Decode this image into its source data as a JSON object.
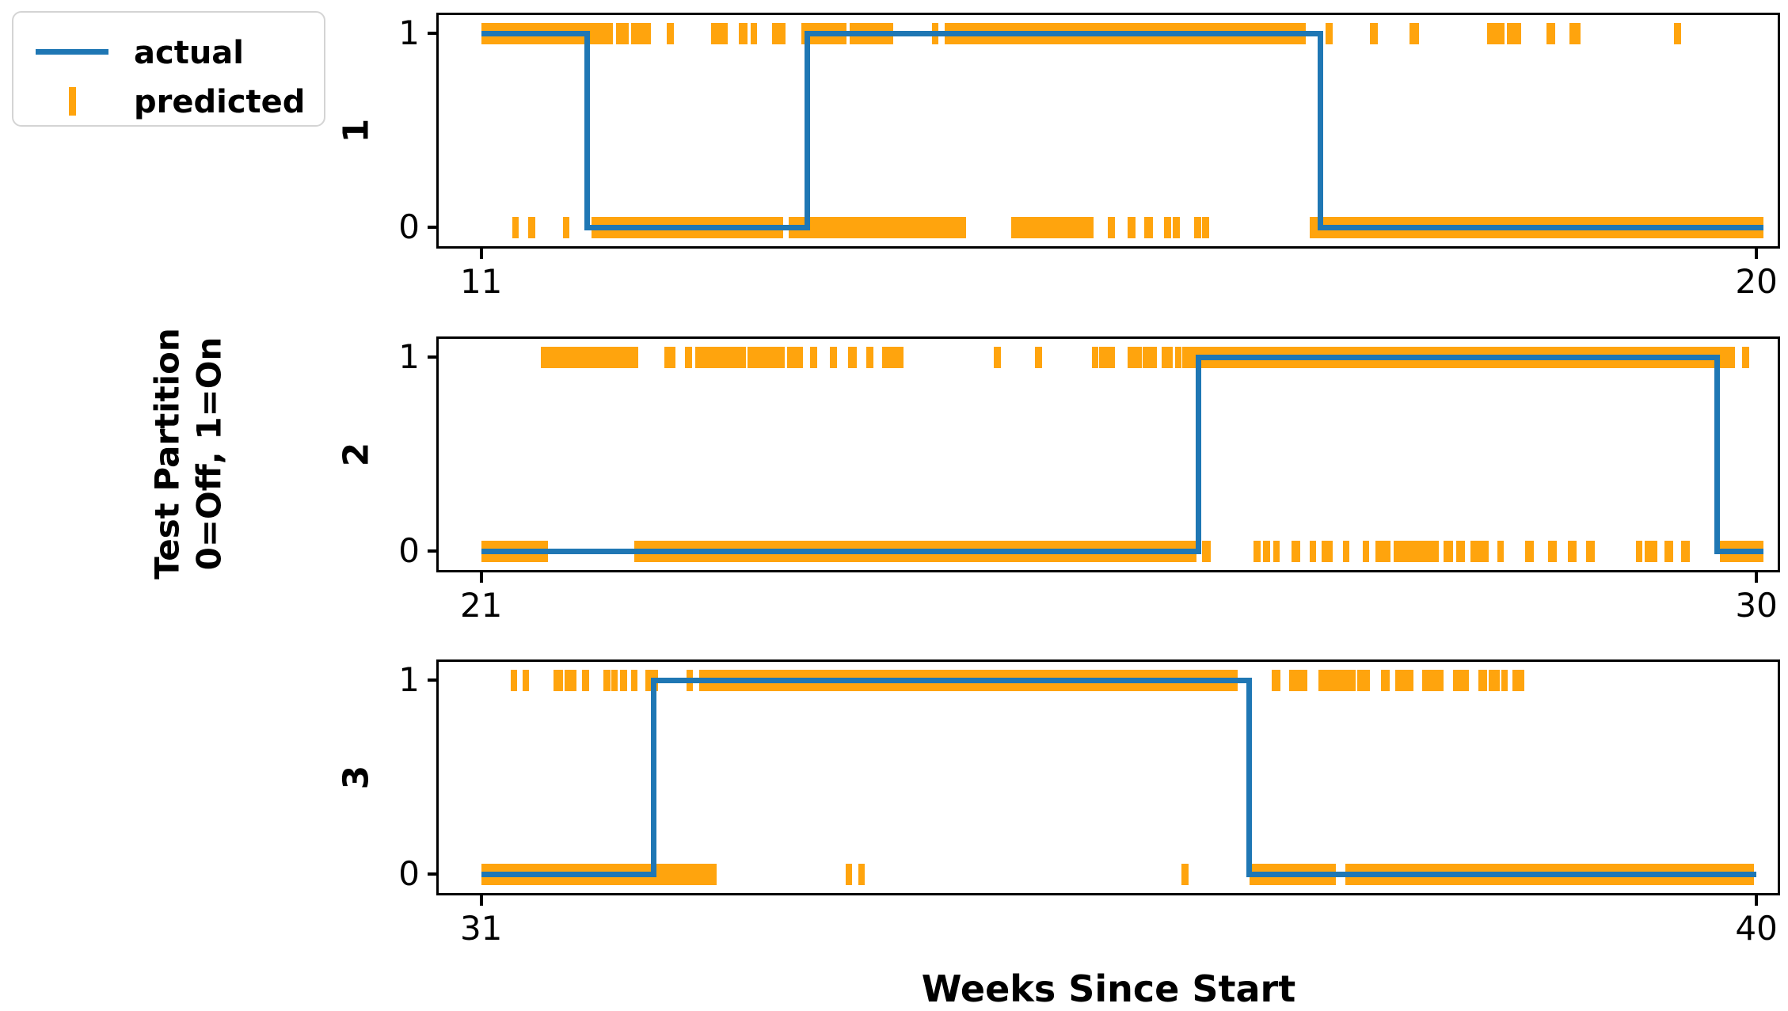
{
  "legend": {
    "items": [
      {
        "label": "actual",
        "marker": "line-sample"
      },
      {
        "label": "predicted",
        "marker": "tick-sample"
      }
    ]
  },
  "chart_data": {
    "type": "line",
    "subtype": "step-line-with-rug-ticks",
    "title": "",
    "xlabel": "Weeks Since Start",
    "ylabel_line1": "Test Partition",
    "ylabel_line2": "0=Off, 1=On",
    "actual_color": "#1f77b4",
    "predicted_color": "#ffa40d",
    "spine_color": "#000000",
    "ylim": [
      0,
      1
    ],
    "ytick_labels": [
      "1",
      "0"
    ],
    "legend_position": "upper left, outside axes",
    "grid": false,
    "panels": [
      {
        "label": "1",
        "xlim": [
          10.7,
          20.15
        ],
        "xtick_values": [
          11,
          20
        ],
        "xtick_labels": [
          "11",
          "20"
        ],
        "actual": {
          "levels": [
            [
              11.0,
              1
            ],
            [
              11.75,
              0
            ],
            [
              13.3,
              1
            ],
            [
              16.92,
              0
            ]
          ],
          "end": 20.05
        },
        "predicted_on": [
          [
            11.0,
            11.93
          ],
          [
            11.95,
            12.04
          ],
          [
            12.06,
            12.2
          ],
          [
            12.31,
            12.36
          ],
          [
            12.62,
            12.74
          ],
          [
            12.82,
            12.88
          ],
          [
            12.9,
            12.93
          ],
          [
            13.05,
            13.15
          ],
          [
            13.26,
            13.58
          ],
          [
            13.6,
            13.91
          ],
          [
            14.18,
            14.22
          ],
          [
            14.27,
            16.82
          ],
          [
            16.96,
            17.01
          ],
          [
            17.27,
            17.33
          ],
          [
            17.55,
            17.62
          ],
          [
            18.1,
            18.22
          ],
          [
            18.24,
            18.34
          ],
          [
            18.52,
            18.58
          ],
          [
            18.68,
            18.76
          ],
          [
            19.42,
            19.47
          ]
        ],
        "predicted_off": [
          [
            11.22,
            11.26
          ],
          [
            11.33,
            11.38
          ],
          [
            11.58,
            11.62
          ],
          [
            11.78,
            13.13
          ],
          [
            13.17,
            14.42
          ],
          [
            14.74,
            15.32
          ],
          [
            15.42,
            15.47
          ],
          [
            15.56,
            15.62
          ],
          [
            15.68,
            15.74
          ],
          [
            15.82,
            15.87
          ],
          [
            15.88,
            15.93
          ],
          [
            16.03,
            16.08
          ],
          [
            16.09,
            16.14
          ],
          [
            16.85,
            20.05
          ]
        ]
      },
      {
        "label": "2",
        "xlim": [
          20.7,
          30.15
        ],
        "xtick_values": [
          21,
          30
        ],
        "xtick_labels": [
          "21",
          "30"
        ],
        "actual": {
          "levels": [
            [
              21.0,
              0
            ],
            [
              26.06,
              1
            ],
            [
              29.72,
              0
            ]
          ],
          "end": 30.05
        },
        "predicted_on": [
          [
            21.42,
            22.11
          ],
          [
            22.29,
            22.37
          ],
          [
            22.44,
            22.49
          ],
          [
            22.51,
            22.87
          ],
          [
            22.88,
            23.14
          ],
          [
            23.16,
            23.27
          ],
          [
            23.32,
            23.37
          ],
          [
            23.46,
            23.51
          ],
          [
            23.59,
            23.65
          ],
          [
            23.72,
            23.77
          ],
          [
            23.83,
            23.98
          ],
          [
            24.62,
            24.67
          ],
          [
            24.91,
            24.96
          ],
          [
            25.31,
            25.35
          ],
          [
            25.36,
            25.47
          ],
          [
            25.56,
            25.66
          ],
          [
            25.67,
            25.77
          ],
          [
            25.8,
            25.88
          ],
          [
            25.9,
            25.94
          ],
          [
            25.95,
            25.98
          ],
          [
            25.99,
            26.02
          ],
          [
            26.03,
            29.85
          ],
          [
            29.9,
            29.95
          ]
        ],
        "predicted_off": [
          [
            21.0,
            21.47
          ],
          [
            22.08,
            26.05
          ],
          [
            26.09,
            26.15
          ],
          [
            26.45,
            26.5
          ],
          [
            26.52,
            26.57
          ],
          [
            26.59,
            26.63
          ],
          [
            26.72,
            26.78
          ],
          [
            26.85,
            26.89
          ],
          [
            26.93,
            27.01
          ],
          [
            27.08,
            27.12
          ],
          [
            27.22,
            27.26
          ],
          [
            27.31,
            27.42
          ],
          [
            27.44,
            27.76
          ],
          [
            27.79,
            27.86
          ],
          [
            27.88,
            27.94
          ],
          [
            27.98,
            28.11
          ],
          [
            28.17,
            28.21
          ],
          [
            28.37,
            28.43
          ],
          [
            28.53,
            28.59
          ],
          [
            28.67,
            28.73
          ],
          [
            28.8,
            28.86
          ],
          [
            29.15,
            29.19
          ],
          [
            29.21,
            29.3
          ],
          [
            29.35,
            29.41
          ],
          [
            29.47,
            29.53
          ],
          [
            29.74,
            30.05
          ]
        ]
      },
      {
        "label": "3",
        "xlim": [
          30.7,
          40.15
        ],
        "xtick_values": [
          31,
          40
        ],
        "xtick_labels": [
          "31",
          "40"
        ],
        "actual": {
          "levels": [
            [
              31.0,
              0
            ],
            [
              32.22,
              1
            ],
            [
              36.42,
              0
            ]
          ],
          "end": 40.0
        },
        "predicted_on": [
          [
            31.21,
            31.25
          ],
          [
            31.29,
            31.33
          ],
          [
            31.51,
            31.58
          ],
          [
            31.59,
            31.67
          ],
          [
            31.71,
            31.76
          ],
          [
            31.86,
            31.91
          ],
          [
            31.92,
            31.95
          ],
          [
            31.98,
            32.03
          ],
          [
            32.06,
            32.09
          ],
          [
            32.16,
            32.25
          ],
          [
            32.45,
            32.48
          ],
          [
            32.54,
            32.58
          ],
          [
            32.58,
            36.34
          ],
          [
            36.58,
            36.64
          ],
          [
            36.7,
            36.83
          ],
          [
            36.91,
            37.17
          ],
          [
            37.18,
            37.27
          ],
          [
            37.35,
            37.41
          ],
          [
            37.45,
            37.58
          ],
          [
            37.64,
            37.79
          ],
          [
            37.86,
            37.97
          ],
          [
            38.04,
            38.1
          ],
          [
            38.11,
            38.19
          ],
          [
            38.2,
            38.24
          ],
          [
            38.28,
            38.36
          ]
        ],
        "predicted_off": [
          [
            31.0,
            32.66
          ],
          [
            33.57,
            33.61
          ],
          [
            33.66,
            33.7
          ],
          [
            35.94,
            35.99
          ],
          [
            36.42,
            37.03
          ],
          [
            37.1,
            39.98
          ]
        ]
      }
    ]
  }
}
